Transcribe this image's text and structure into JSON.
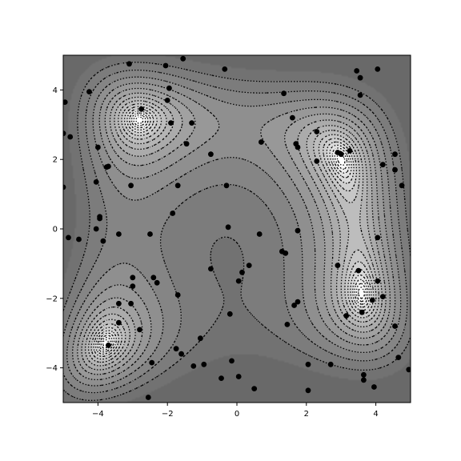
{
  "chart_data": {
    "type": "scatter",
    "background": "filled grayscale contour with dotted black contour lines",
    "title": "",
    "xlabel": "",
    "ylabel": "",
    "xlim": [
      -5,
      5
    ],
    "ylim": [
      -5,
      5
    ],
    "x_ticks": [
      -4,
      -2,
      0,
      2,
      4
    ],
    "y_ticks": [
      -4,
      -2,
      0,
      2,
      4
    ],
    "grid": false,
    "legend": "none",
    "colors": {
      "points": "#000000",
      "contour_lines": "#000000",
      "fill_low": "#ffffff",
      "fill_high": "#7a7a7a"
    },
    "series": [
      {
        "points": [
          [
            -3.1,
            4.75
          ],
          [
            -2.05,
            4.7
          ],
          [
            -1.55,
            4.9
          ],
          [
            -0.35,
            4.6
          ],
          [
            -4.25,
            3.95
          ],
          [
            -2.75,
            3.45
          ],
          [
            -1.95,
            4.05
          ],
          [
            -2.0,
            3.7
          ],
          [
            -1.9,
            3.05
          ],
          [
            -1.3,
            3.05
          ],
          [
            -1.45,
            2.45
          ],
          [
            -0.75,
            2.15
          ],
          [
            -4.95,
            3.65
          ],
          [
            -5.0,
            2.75
          ],
          [
            -4.8,
            2.65
          ],
          [
            -4.0,
            2.35
          ],
          [
            -3.7,
            1.8
          ],
          [
            -3.75,
            1.78
          ],
          [
            -4.05,
            1.35
          ],
          [
            -3.05,
            1.25
          ],
          [
            -1.7,
            1.25
          ],
          [
            -0.3,
            1.25
          ],
          [
            -5.0,
            1.2
          ],
          [
            -1.85,
            0.45
          ],
          [
            -3.95,
            0.35
          ],
          [
            -3.95,
            0.3
          ],
          [
            -4.05,
            0.0
          ],
          [
            -0.25,
            0.05
          ],
          [
            -4.85,
            -0.25
          ],
          [
            -4.55,
            -0.3
          ],
          [
            -3.85,
            -0.35
          ],
          [
            -3.4,
            -0.15
          ],
          [
            -2.5,
            -0.15
          ],
          [
            0.65,
            -0.15
          ],
          [
            1.75,
            -0.05
          ],
          [
            1.3,
            -0.65
          ],
          [
            1.4,
            -0.7
          ],
          [
            0.35,
            -1.05
          ],
          [
            0.15,
            -1.25
          ],
          [
            -0.75,
            -1.15
          ],
          [
            0.05,
            -1.5
          ],
          [
            -3.0,
            -1.4
          ],
          [
            -3.0,
            -1.65
          ],
          [
            -2.4,
            -1.4
          ],
          [
            -2.3,
            -1.55
          ],
          [
            -1.7,
            -1.9
          ],
          [
            -3.4,
            -2.15
          ],
          [
            -3.05,
            -2.15
          ],
          [
            1.65,
            -2.2
          ],
          [
            1.75,
            -2.1
          ],
          [
            -0.2,
            -2.45
          ],
          [
            -3.4,
            -2.7
          ],
          [
            -2.8,
            -2.9
          ],
          [
            1.45,
            -2.75
          ],
          [
            -1.05,
            -3.15
          ],
          [
            -3.7,
            -3.35
          ],
          [
            -1.75,
            -3.45
          ],
          [
            -1.6,
            -3.6
          ],
          [
            -0.15,
            -3.8
          ],
          [
            -2.45,
            -3.85
          ],
          [
            -0.95,
            -3.9
          ],
          [
            -1.25,
            -3.95
          ],
          [
            2.05,
            -3.9
          ],
          [
            2.7,
            -3.9
          ],
          [
            0.05,
            -4.25
          ],
          [
            -0.45,
            -4.3
          ],
          [
            -2.55,
            -4.85
          ],
          [
            0.5,
            -4.6
          ],
          [
            2.05,
            -4.65
          ],
          [
            3.65,
            -4.2
          ],
          [
            3.65,
            -4.35
          ],
          [
            3.95,
            -4.55
          ],
          [
            4.65,
            -3.7
          ],
          [
            4.95,
            -4.05
          ],
          [
            4.55,
            -2.8
          ],
          [
            3.6,
            -2.4
          ],
          [
            3.15,
            -2.5
          ],
          [
            3.9,
            -2.05
          ],
          [
            4.2,
            -1.95
          ],
          [
            4.05,
            -1.5
          ],
          [
            3.5,
            -1.2
          ],
          [
            2.9,
            -1.05
          ],
          [
            4.05,
            -0.25
          ],
          [
            4.75,
            1.25
          ],
          [
            4.55,
            1.7
          ],
          [
            4.2,
            1.85
          ],
          [
            4.55,
            2.15
          ],
          [
            3.0,
            2.15
          ],
          [
            2.9,
            2.2
          ],
          [
            3.25,
            2.25
          ],
          [
            2.3,
            1.95
          ],
          [
            1.75,
            2.35
          ],
          [
            1.7,
            2.45
          ],
          [
            0.7,
            2.5
          ],
          [
            2.3,
            2.8
          ],
          [
            1.6,
            3.2
          ],
          [
            1.35,
            3.9
          ],
          [
            3.55,
            3.85
          ],
          [
            3.55,
            4.35
          ],
          [
            3.45,
            4.55
          ],
          [
            4.05,
            4.6
          ]
        ]
      }
    ]
  }
}
